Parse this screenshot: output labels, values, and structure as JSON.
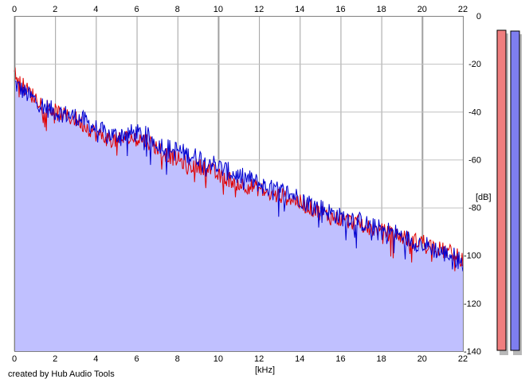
{
  "chart_data": {
    "type": "area",
    "xlabel": "[kHz]",
    "ylabel": "[dB]",
    "xlim": [
      0,
      22
    ],
    "ylim": [
      -140,
      0
    ],
    "x_ticks": [
      "0",
      "2",
      "4",
      "6",
      "8",
      "10",
      "12",
      "14",
      "16",
      "18",
      "20",
      "22"
    ],
    "y_ticks": [
      "0",
      "-20",
      "-40",
      "-60",
      "-80",
      "-100",
      "-120",
      "-140"
    ],
    "grid": true,
    "series": [
      {
        "color": "#e00000",
        "x": [
          0,
          0.5,
          1,
          1.5,
          2,
          2.5,
          3,
          3.5,
          4,
          4.5,
          5,
          5.5,
          6,
          6.5,
          7,
          7.5,
          8,
          8.5,
          9,
          9.5,
          10,
          10.5,
          11,
          11.5,
          12,
          12.5,
          13,
          13.5,
          14,
          14.5,
          15,
          15.5,
          16,
          16.5,
          17,
          17.5,
          18,
          18.5,
          19,
          19.5,
          20,
          20.5,
          21,
          21.5,
          22
        ],
        "y": [
          -24,
          -30,
          -34,
          -37,
          -40,
          -42,
          -43,
          -46,
          -49,
          -51,
          -52,
          -51,
          -51,
          -52,
          -55,
          -58,
          -60,
          -62,
          -63,
          -63,
          -67,
          -68,
          -70,
          -71,
          -72,
          -75,
          -75,
          -76,
          -78,
          -80,
          -82,
          -84,
          -85,
          -86,
          -87,
          -89,
          -90,
          -91,
          -92,
          -94,
          -94,
          -96,
          -98,
          -99,
          -102
        ]
      },
      {
        "color": "#0000d0",
        "x": [
          0,
          0.5,
          1,
          1.5,
          2,
          2.5,
          3,
          3.5,
          4,
          4.5,
          5,
          5.5,
          6,
          6.5,
          7,
          7.5,
          8,
          8.5,
          9,
          9.5,
          10,
          10.5,
          11,
          11.5,
          12,
          12.5,
          13,
          13.5,
          14,
          14.5,
          15,
          15.5,
          16,
          16.5,
          17,
          17.5,
          18,
          18.5,
          19,
          19.5,
          20,
          20.5,
          21,
          21.5,
          22
        ],
        "y": [
          -28,
          -32,
          -35,
          -38,
          -40,
          -41,
          -42,
          -44,
          -47,
          -49,
          -50,
          -49,
          -49,
          -50,
          -53,
          -55,
          -56,
          -58,
          -59,
          -60,
          -63,
          -65,
          -67,
          -68,
          -70,
          -72,
          -73,
          -74,
          -76,
          -78,
          -80,
          -82,
          -84,
          -84,
          -86,
          -88,
          -89,
          -90,
          -92,
          -94,
          -95,
          -97,
          -99,
          -100,
          -103
        ]
      }
    ]
  },
  "meters": {
    "left_color": "#f07e7e",
    "right_color": "#7e7ef0"
  },
  "footer": {
    "credit": "created by Hub Audio Tools"
  }
}
